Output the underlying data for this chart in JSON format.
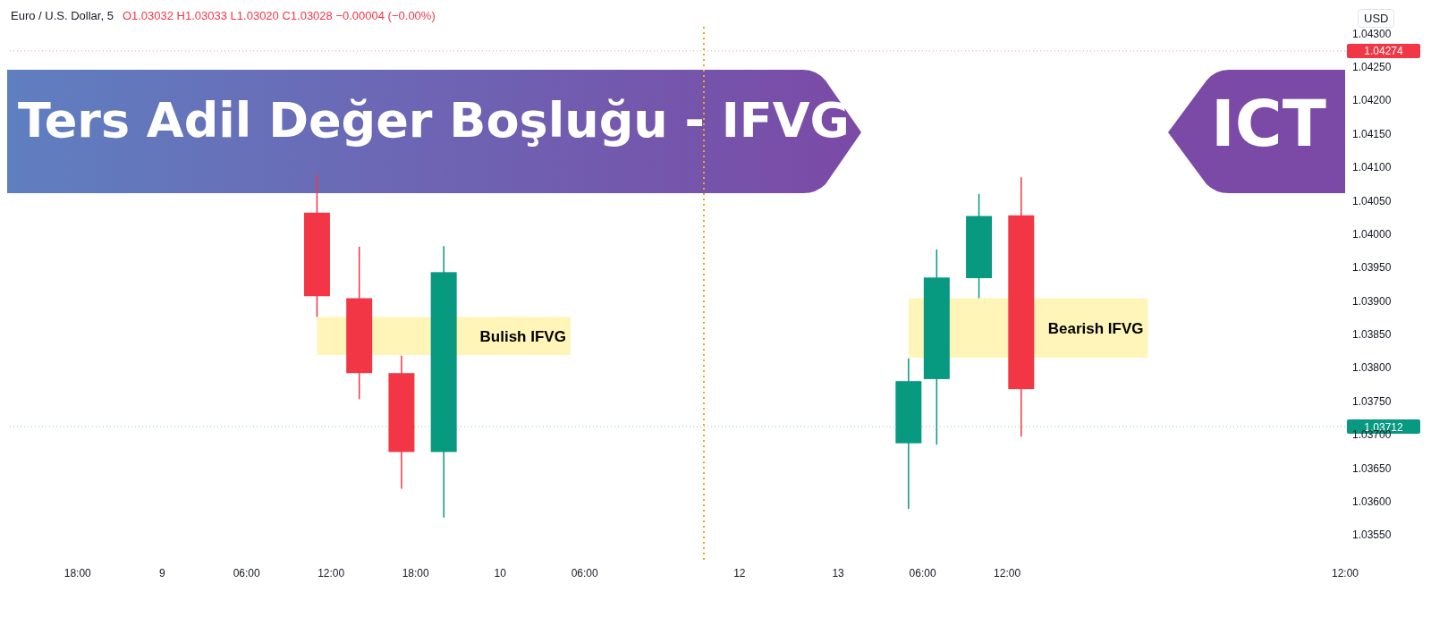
{
  "chart_data": {
    "type": "candlestick",
    "title": "Ters Adil Değer Boşluğu - IFVG",
    "subtitle": "ICT",
    "ylabel": "USD",
    "annotations": [
      "Euro / U.S. Dollar, 5",
      "O1.03032  H1.03033  L1.03020  C1.03028  −0.00004 (−0.00%)"
    ],
    "categories": [
      null,
      null,
      null,
      null,
      null,
      "18:00",
      null,
      null,
      null,
      null,
      null,
      "9",
      null,
      null,
      null,
      null,
      null,
      "06:00",
      null,
      null,
      null,
      null,
      null,
      "12:00",
      null,
      null,
      null,
      null,
      null,
      "18:00",
      null,
      null,
      null,
      null,
      null,
      "10",
      null,
      null,
      null,
      null,
      null,
      "06:00",
      null,
      null,
      null,
      null,
      null,
      null,
      null,
      null,
      null,
      null,
      "12",
      null,
      null,
      null,
      null,
      null,
      null,
      "13",
      null,
      null,
      null,
      null,
      null,
      "06:00",
      null,
      null,
      null,
      null,
      null,
      "12:00",
      null,
      null,
      null,
      null,
      null,
      null,
      null,
      null,
      null,
      null,
      null,
      null,
      null,
      null,
      null,
      null,
      null,
      null,
      null,
      null,
      null,
      null,
      null,
      "12:00"
    ],
    "ohlc": [
      null,
      null,
      null,
      null,
      null,
      null,
      null,
      null,
      null,
      null,
      null,
      null,
      null,
      null,
      null,
      null,
      null,
      null,
      null,
      null,
      null,
      null,
      [
        1.04032,
        1.04089,
        1.03876,
        1.03907
      ],
      null,
      null,
      [
        1.03904,
        1.03981,
        1.03753,
        1.03792
      ],
      null,
      null,
      [
        1.03792,
        1.03818,
        1.03619,
        1.03674
      ],
      null,
      null,
      [
        1.03674,
        1.03982,
        1.03576,
        1.03943
      ],
      null,
      null,
      null,
      null,
      null,
      null,
      null,
      null,
      null,
      null,
      null,
      null,
      null,
      null,
      null,
      null,
      null,
      null,
      null,
      null,
      null,
      null,
      null,
      null,
      null,
      null,
      null,
      null,
      null,
      null,
      null,
      null,
      [
        1.03687,
        1.03814,
        1.03589,
        1.0378
      ],
      null,
      [
        1.03783,
        1.03977,
        1.03685,
        1.03935
      ],
      null,
      null,
      [
        1.03934,
        1.0406,
        1.03904,
        1.04027
      ],
      null,
      null,
      [
        1.04028,
        1.04085,
        1.03697,
        1.03768
      ],
      null,
      null,
      null,
      null,
      null,
      null,
      null,
      null,
      null,
      null,
      null,
      null,
      null,
      null,
      null,
      null,
      null,
      null,
      null,
      null,
      null,
      null,
      null
    ],
    "colors": [
      null,
      null,
      null,
      null,
      null,
      null,
      null,
      null,
      null,
      null,
      null,
      null,
      null,
      null,
      null,
      null,
      null,
      null,
      null,
      null,
      null,
      null,
      "#f23645",
      null,
      null,
      "#f23645",
      null,
      null,
      "#f23645",
      null,
      null,
      "#089981",
      null,
      null,
      null,
      null,
      null,
      null,
      null,
      null,
      null,
      null,
      null,
      null,
      null,
      null,
      null,
      null,
      null,
      null,
      null,
      null,
      null,
      null,
      null,
      null,
      null,
      null,
      null,
      null,
      null,
      null,
      null,
      null,
      "#089981",
      null,
      "#089981",
      null,
      null,
      "#089981",
      null,
      null,
      "#f23645",
      null,
      null,
      null,
      null,
      null,
      null,
      null,
      null,
      null,
      null,
      null,
      null,
      null,
      null,
      null,
      null,
      null,
      null,
      null,
      null,
      null,
      null,
      null
    ],
    "ylim": [
      1.0351,
      1.0431
    ],
    "yticks": [
      {
        "value": 1.0355,
        "label": "1.03550"
      },
      {
        "value": 1.036,
        "label": "1.03600"
      },
      {
        "value": 1.0365,
        "label": "1.03650"
      },
      {
        "value": 1.037,
        "label": "1.03700"
      },
      {
        "value": 1.0375,
        "label": "1.03750"
      },
      {
        "value": 1.038,
        "label": "1.03800"
      },
      {
        "value": 1.0385,
        "label": "1.03850"
      },
      {
        "value": 1.039,
        "label": "1.03900"
      },
      {
        "value": 1.0395,
        "label": "1.03950"
      },
      {
        "value": 1.04,
        "label": "1.04000"
      },
      {
        "value": 1.0405,
        "label": "1.04050"
      },
      {
        "value": 1.041,
        "label": "1.04100"
      },
      {
        "value": 1.0415,
        "label": "1.04150"
      },
      {
        "value": 1.042,
        "label": "1.04200"
      },
      {
        "value": 1.0425,
        "label": "1.04250"
      },
      {
        "value": 1.043,
        "label": "1.04300"
      }
    ],
    "ref_lines": [
      {
        "axis": "y",
        "value": 1.04274,
        "label": "1.04274",
        "color": "#f23645",
        "line_style": "dotted"
      },
      {
        "axis": "y",
        "value": 1.03712,
        "label": "1.03712",
        "color": "#089981",
        "line_style": "dotted"
      }
    ],
    "bands": [
      {
        "axis": "y",
        "from": 1.03819,
        "to": 1.03876,
        "label": "Bulish IFVG",
        "color": "#fff5b8"
      },
      {
        "axis": "y",
        "from": 1.03815,
        "to": 1.03904,
        "label": "Bearish IFVG",
        "color": "#fff5b8"
      }
    ]
  }
}
